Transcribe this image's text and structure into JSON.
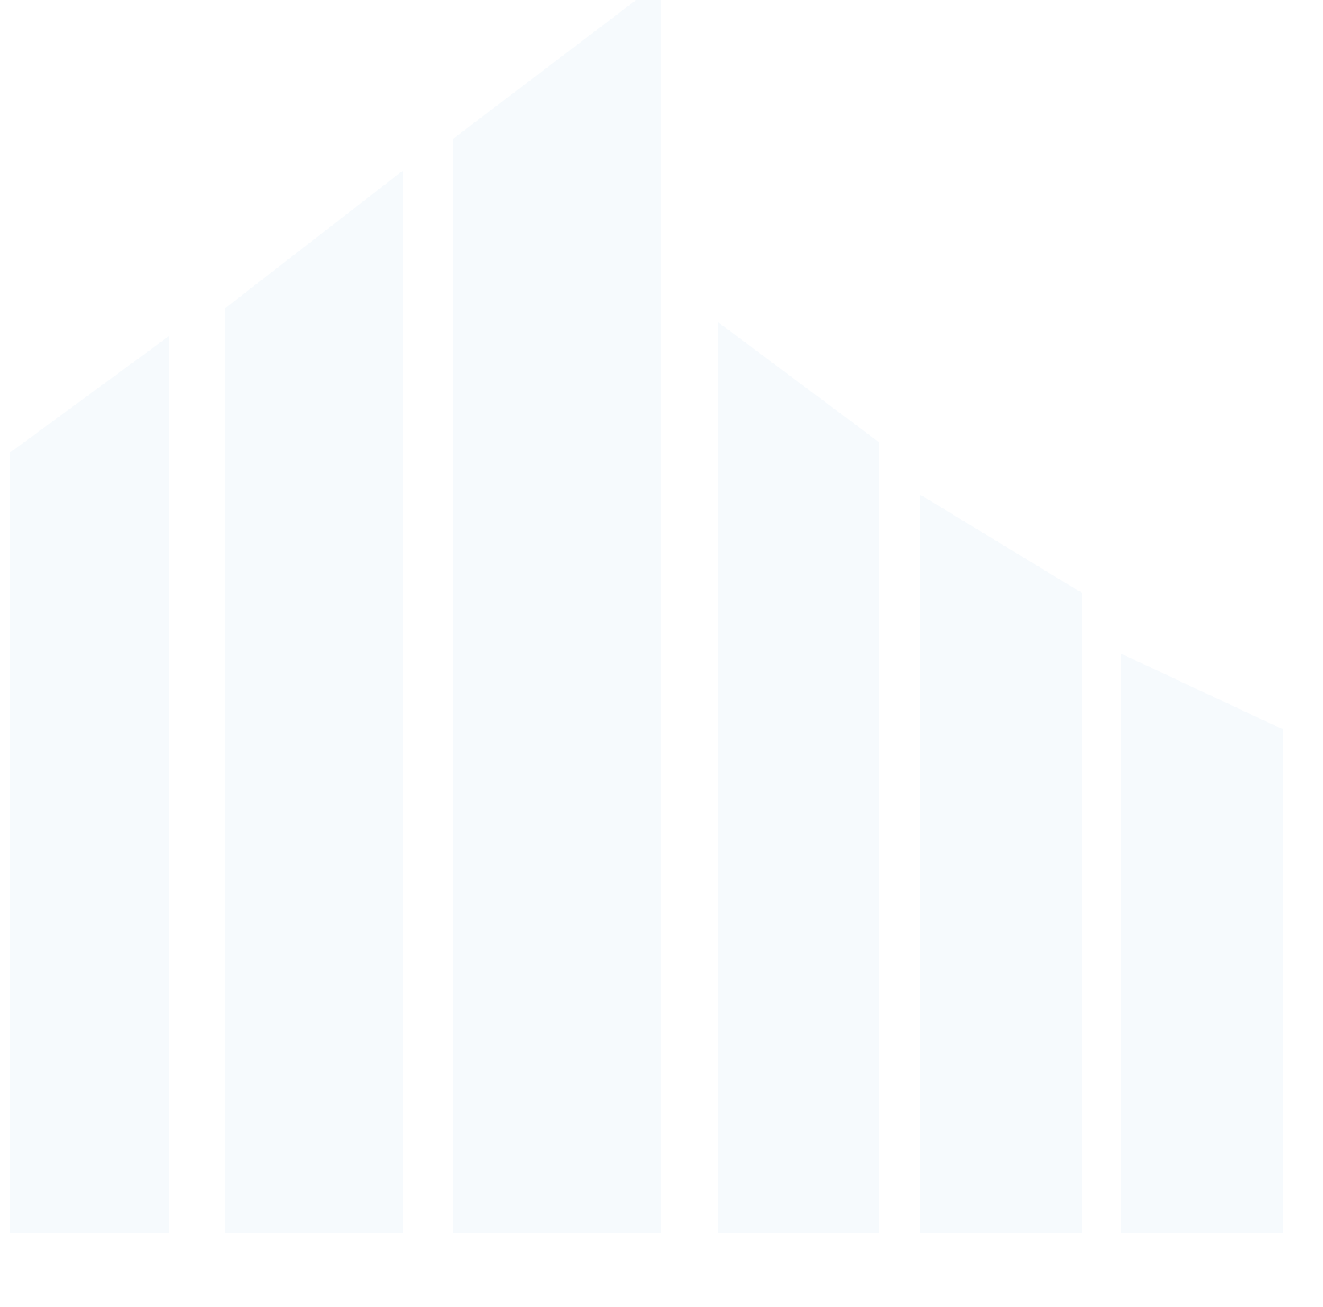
{
  "graphic": {
    "kind": "decorative-building-logo-watermark",
    "background_color": "#ffffff",
    "shape_color": "#f6fafd",
    "shape_count": 6
  }
}
